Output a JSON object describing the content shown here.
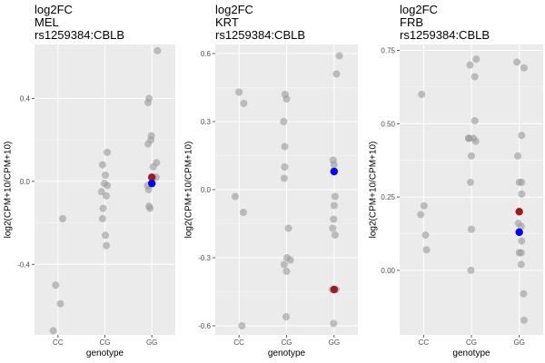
{
  "chart_data": [
    {
      "type": "scatter",
      "title_lines": [
        "log2FC",
        "MEL",
        "rs1259384:CBLB"
      ],
      "xlabel": "genotype",
      "ylabel": "log2(CPM+10/CPM+10)",
      "categories": [
        "CC",
        "CG",
        "GG"
      ],
      "ylim": [
        -0.74,
        0.66
      ],
      "yticks": [
        -0.4,
        0.0,
        0.4
      ],
      "ytick_labels": [
        "-0.4",
        "0.0",
        "0.4"
      ],
      "grid": true,
      "colors": {
        "background": "#ebebeb",
        "grid": "#ffffff",
        "point": "#999999",
        "highlight_red": "#a01c1c",
        "highlight_blue": "#0000ff"
      },
      "points": [
        {
          "x": "CC",
          "y": -0.18,
          "j": 0.1
        },
        {
          "x": "CC",
          "y": -0.5,
          "j": -0.05
        },
        {
          "x": "CC",
          "y": -0.59,
          "j": 0.05
        },
        {
          "x": "CC",
          "y": -0.72,
          "j": -0.1
        },
        {
          "x": "CG",
          "y": 0.14,
          "j": 0.05
        },
        {
          "x": "CG",
          "y": 0.08,
          "j": -0.05
        },
        {
          "x": "CG",
          "y": 0.03,
          "j": 0.01
        },
        {
          "x": "CG",
          "y": -0.01,
          "j": -0.01
        },
        {
          "x": "CG",
          "y": -0.02,
          "j": 0.05
        },
        {
          "x": "CG",
          "y": -0.05,
          "j": -0.07
        },
        {
          "x": "CG",
          "y": -0.07,
          "j": 0.03
        },
        {
          "x": "CG",
          "y": -0.13,
          "j": -0.04
        },
        {
          "x": "CG",
          "y": -0.18,
          "j": -0.05
        },
        {
          "x": "CG",
          "y": -0.26,
          "j": 0.01
        },
        {
          "x": "CG",
          "y": -0.31,
          "j": 0.03
        },
        {
          "x": "GG",
          "y": 0.63,
          "j": 0.12
        },
        {
          "x": "GG",
          "y": 0.4,
          "j": -0.06
        },
        {
          "x": "GG",
          "y": 0.38,
          "j": -0.08
        },
        {
          "x": "GG",
          "y": 0.22,
          "j": -0.01
        },
        {
          "x": "GG",
          "y": 0.2,
          "j": -0.02
        },
        {
          "x": "GG",
          "y": 0.18,
          "j": -0.08
        },
        {
          "x": "GG",
          "y": 0.09,
          "j": 0.1
        },
        {
          "x": "GG",
          "y": 0.07,
          "j": 0.03
        },
        {
          "x": "GG",
          "y": 0.02,
          "j": 0.09
        },
        {
          "x": "GG",
          "y": -0.02,
          "j": -0.09
        },
        {
          "x": "GG",
          "y": -0.04,
          "j": -0.07
        },
        {
          "x": "GG",
          "y": -0.12,
          "j": -0.06
        },
        {
          "x": "GG",
          "y": -0.13,
          "j": -0.04
        }
      ],
      "highlights": [
        {
          "x": "GG",
          "y": 0.02,
          "color": "red",
          "j": 0.0
        },
        {
          "x": "GG",
          "y": -0.01,
          "color": "blue",
          "j": 0.0
        }
      ]
    },
    {
      "type": "scatter",
      "title_lines": [
        "log2FC",
        "KRT",
        "rs1259384:CBLB"
      ],
      "xlabel": "genotype",
      "ylabel": "log2(CPM+10/CPM+10)",
      "categories": [
        "CC",
        "CG",
        "GG"
      ],
      "ylim": [
        -0.64,
        0.64
      ],
      "yticks": [
        -0.6,
        -0.3,
        0.0,
        0.3,
        0.6
      ],
      "ytick_labels": [
        "-0.6",
        "-0.3",
        "0.0",
        "0.3",
        "0.6"
      ],
      "grid": true,
      "colors": {
        "background": "#ebebeb",
        "grid": "#ffffff",
        "point": "#999999",
        "highlight_red": "#a01c1c",
        "highlight_blue": "#0000ff"
      },
      "points": [
        {
          "x": "CC",
          "y": 0.43,
          "j": 0.0
        },
        {
          "x": "CC",
          "y": 0.38,
          "j": 0.1
        },
        {
          "x": "CC",
          "y": -0.03,
          "j": -0.08
        },
        {
          "x": "CC",
          "y": -0.1,
          "j": 0.09
        },
        {
          "x": "CC",
          "y": -0.6,
          "j": 0.06
        },
        {
          "x": "CG",
          "y": 0.42,
          "j": -0.03
        },
        {
          "x": "CG",
          "y": 0.4,
          "j": 0.0
        },
        {
          "x": "CG",
          "y": 0.3,
          "j": -0.06
        },
        {
          "x": "CG",
          "y": 0.19,
          "j": -0.04
        },
        {
          "x": "CG",
          "y": 0.1,
          "j": -0.04
        },
        {
          "x": "CG",
          "y": 0.05,
          "j": -0.05
        },
        {
          "x": "CG",
          "y": -0.17,
          "j": 0.04
        },
        {
          "x": "CG",
          "y": -0.3,
          "j": 0.01
        },
        {
          "x": "CG",
          "y": -0.31,
          "j": 0.08
        },
        {
          "x": "CG",
          "y": -0.33,
          "j": -0.05
        },
        {
          "x": "CG",
          "y": -0.36,
          "j": 0.0
        },
        {
          "x": "CG",
          "y": -0.56,
          "j": -0.01
        },
        {
          "x": "GG",
          "y": 0.59,
          "j": 0.11
        },
        {
          "x": "GG",
          "y": 0.51,
          "j": 0.05
        },
        {
          "x": "GG",
          "y": 0.13,
          "j": -0.02
        },
        {
          "x": "GG",
          "y": 0.11,
          "j": 0.0
        },
        {
          "x": "GG",
          "y": -0.03,
          "j": 0.02
        },
        {
          "x": "GG",
          "y": -0.07,
          "j": 0.0
        },
        {
          "x": "GG",
          "y": -0.13,
          "j": -0.01
        },
        {
          "x": "GG",
          "y": -0.17,
          "j": -0.03
        },
        {
          "x": "GG",
          "y": -0.2,
          "j": 0.02
        },
        {
          "x": "GG",
          "y": -0.44,
          "j": -0.04
        },
        {
          "x": "GG",
          "y": -0.44,
          "j": 0.04
        },
        {
          "x": "GG",
          "y": -0.59,
          "j": -0.01
        }
      ],
      "highlights": [
        {
          "x": "GG",
          "y": 0.08,
          "color": "blue",
          "j": 0.0
        },
        {
          "x": "GG",
          "y": -0.44,
          "color": "red",
          "j": 0.0
        }
      ]
    },
    {
      "type": "scatter",
      "title_lines": [
        "log2FC",
        "FRB",
        "rs1259384:CBLB"
      ],
      "xlabel": "genotype",
      "ylabel": "log2(CPM+10/CPM+10)",
      "categories": [
        "CC",
        "CG",
        "GG"
      ],
      "ylim": [
        -0.22,
        0.77
      ],
      "yticks": [
        0.0,
        0.25,
        0.5,
        0.75
      ],
      "ytick_labels": [
        "0.00",
        "0.25",
        "0.50",
        "0.75"
      ],
      "grid": true,
      "colors": {
        "background": "#ebebeb",
        "grid": "#ffffff",
        "point": "#999999",
        "highlight_red": "#a01c1c",
        "highlight_blue": "#0000ff"
      },
      "points": [
        {
          "x": "CC",
          "y": 0.6,
          "j": -0.04
        },
        {
          "x": "CC",
          "y": 0.22,
          "j": 0.01
        },
        {
          "x": "CC",
          "y": 0.19,
          "j": -0.06
        },
        {
          "x": "CC",
          "y": 0.12,
          "j": 0.04
        },
        {
          "x": "CC",
          "y": 0.07,
          "j": 0.06
        },
        {
          "x": "CG",
          "y": 0.72,
          "j": 0.1
        },
        {
          "x": "CG",
          "y": 0.7,
          "j": -0.03
        },
        {
          "x": "CG",
          "y": 0.66,
          "j": 0.07
        },
        {
          "x": "CG",
          "y": 0.51,
          "j": 0.07
        },
        {
          "x": "CG",
          "y": 0.45,
          "j": 0.04
        },
        {
          "x": "CG",
          "y": 0.45,
          "j": -0.05
        },
        {
          "x": "CG",
          "y": 0.45,
          "j": -0.06
        },
        {
          "x": "CG",
          "y": 0.44,
          "j": 0.09
        },
        {
          "x": "CG",
          "y": 0.39,
          "j": 0.0
        },
        {
          "x": "CG",
          "y": 0.3,
          "j": -0.02
        },
        {
          "x": "CG",
          "y": 0.14,
          "j": 0.0
        },
        {
          "x": "CG",
          "y": 0.0,
          "j": -0.01
        },
        {
          "x": "GG",
          "y": 0.71,
          "j": -0.05
        },
        {
          "x": "GG",
          "y": 0.69,
          "j": 0.1
        },
        {
          "x": "GG",
          "y": 0.46,
          "j": 0.05
        },
        {
          "x": "GG",
          "y": 0.39,
          "j": -0.03
        },
        {
          "x": "GG",
          "y": 0.3,
          "j": 0.05
        },
        {
          "x": "GG",
          "y": 0.3,
          "j": 0.0
        },
        {
          "x": "GG",
          "y": 0.26,
          "j": 0.05
        },
        {
          "x": "GG",
          "y": 0.16,
          "j": -0.02
        },
        {
          "x": "GG",
          "y": 0.15,
          "j": 0.04
        },
        {
          "x": "GG",
          "y": 0.1,
          "j": 0.05
        },
        {
          "x": "GG",
          "y": 0.06,
          "j": 0.0
        },
        {
          "x": "GG",
          "y": 0.06,
          "j": 0.04
        },
        {
          "x": "GG",
          "y": 0.02,
          "j": 0.04
        },
        {
          "x": "GG",
          "y": -0.08,
          "j": 0.09
        },
        {
          "x": "GG",
          "y": -0.17,
          "j": 0.1
        }
      ],
      "highlights": [
        {
          "x": "GG",
          "y": 0.2,
          "color": "red",
          "j": 0.0
        },
        {
          "x": "GG",
          "y": 0.13,
          "color": "blue",
          "j": 0.0
        }
      ]
    }
  ]
}
